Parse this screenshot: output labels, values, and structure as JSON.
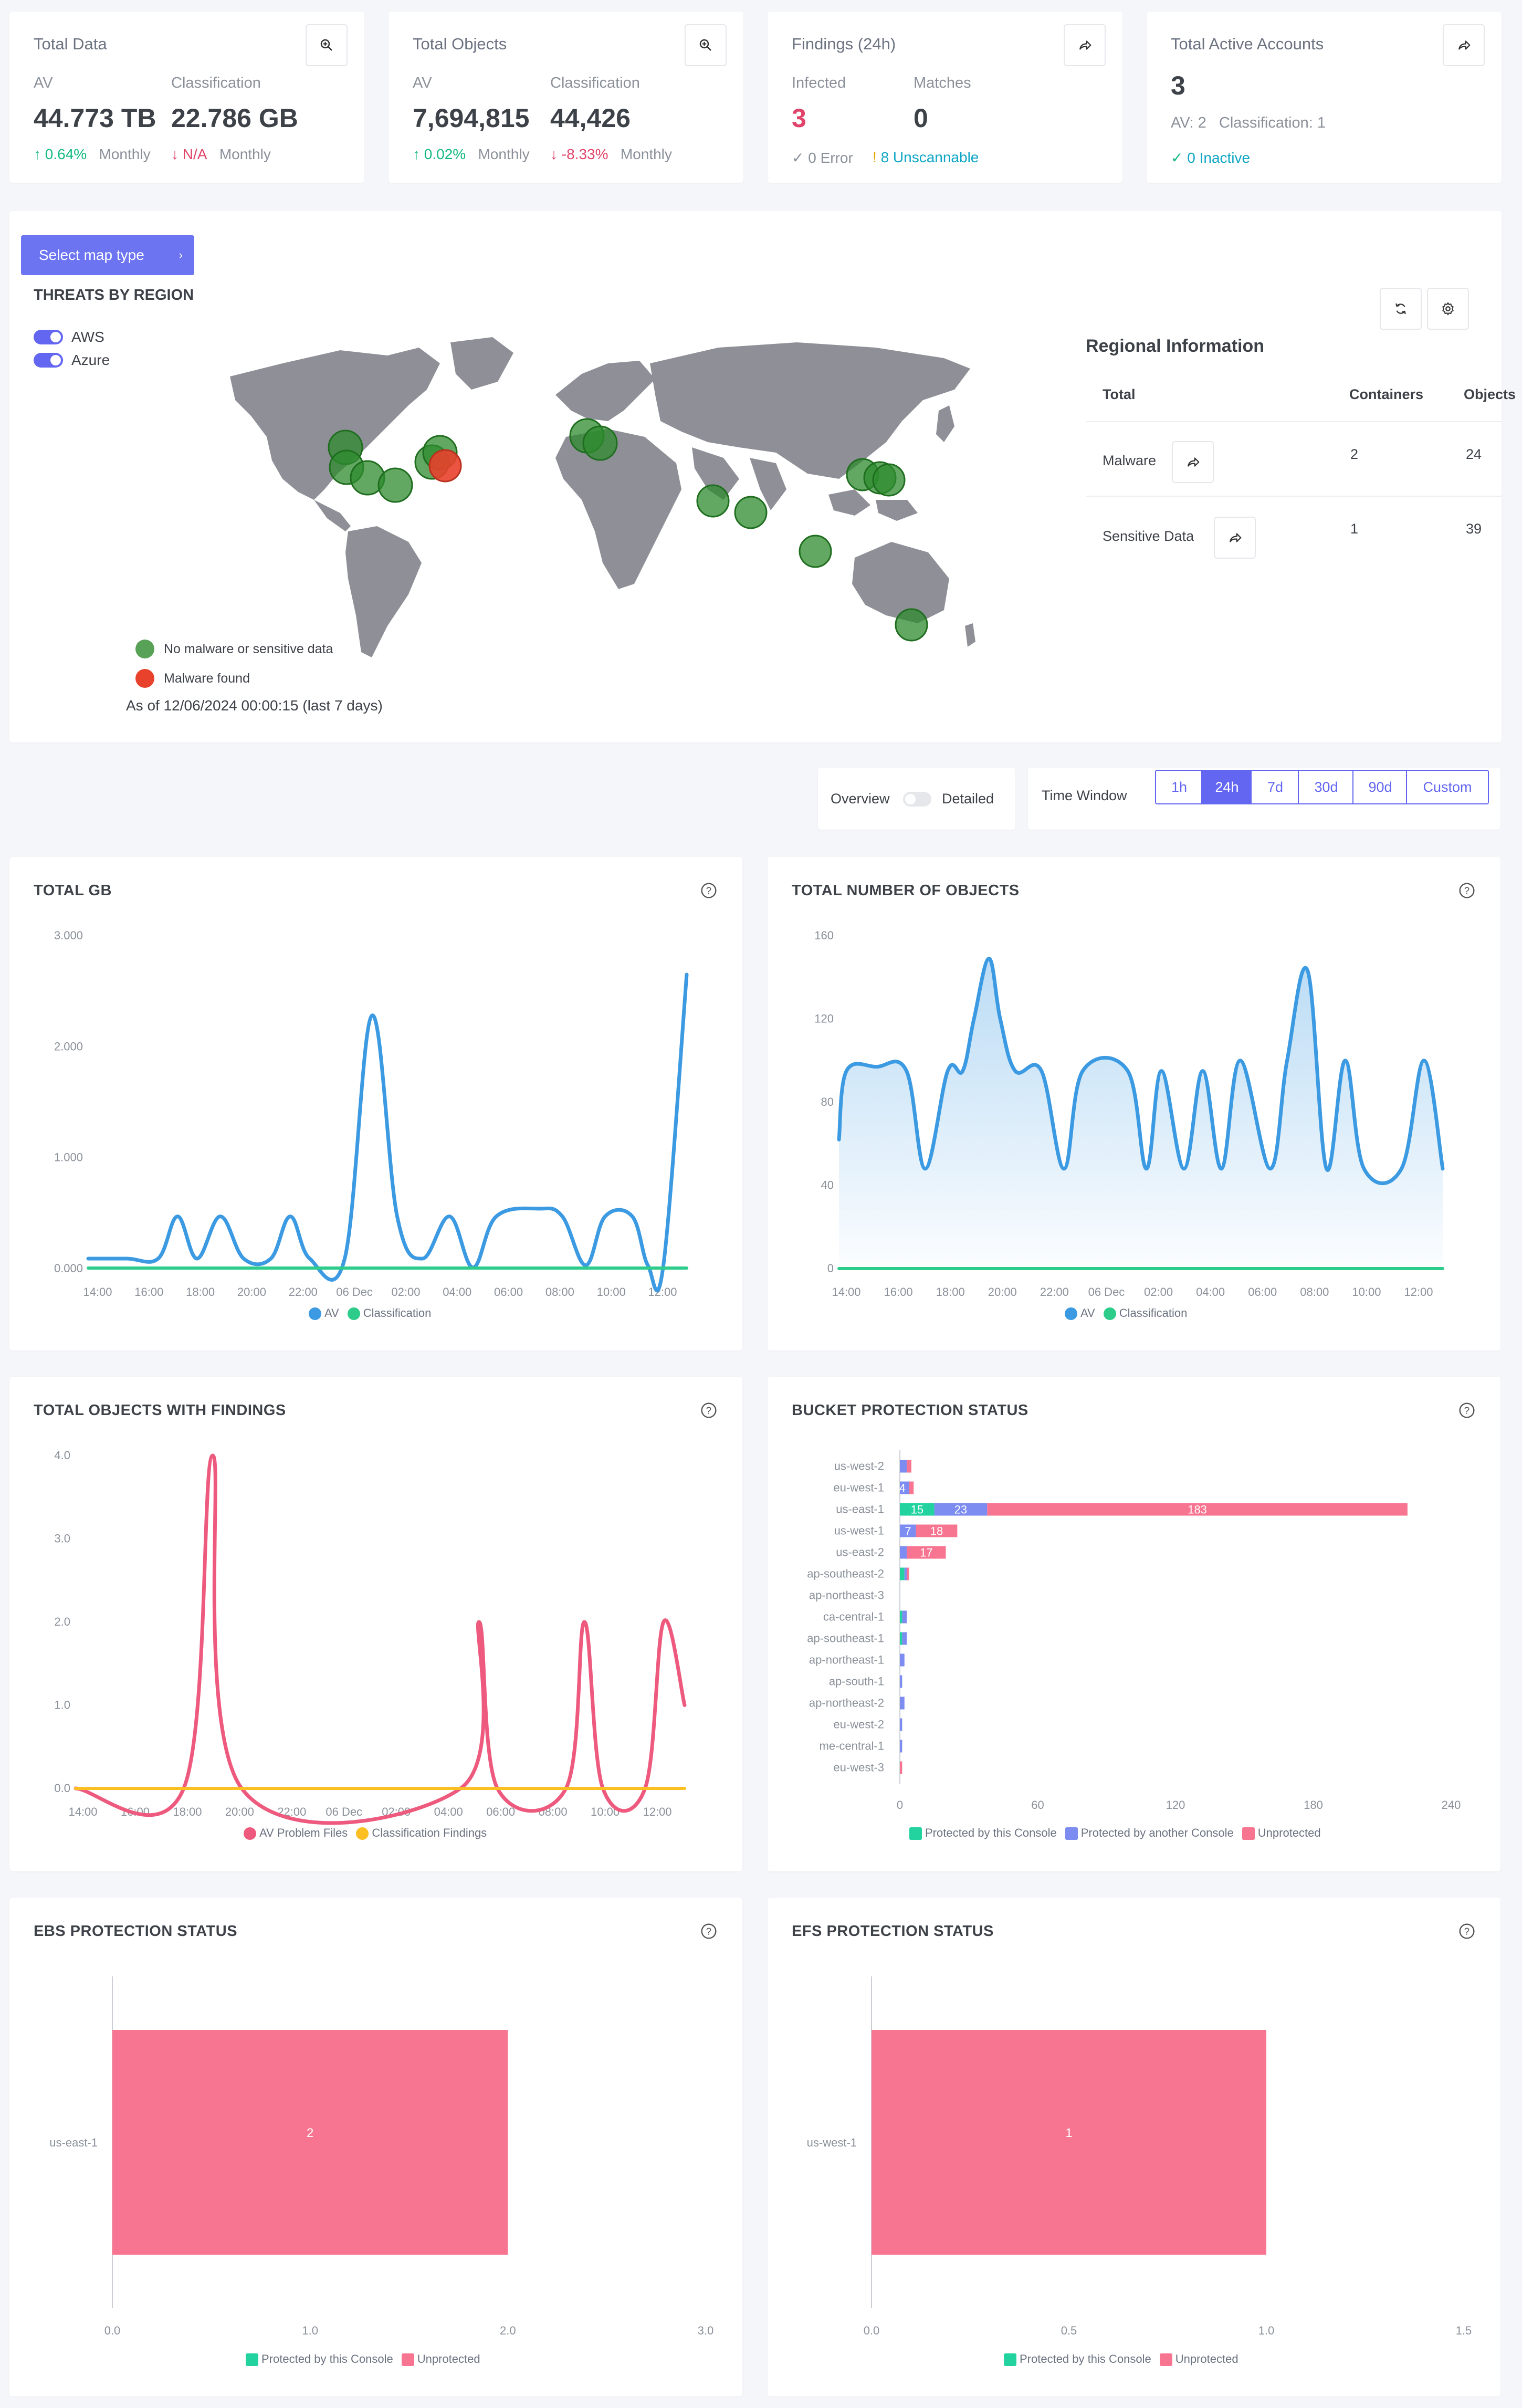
{
  "stats": [
    {
      "title": "Total Data",
      "sub1": "AV",
      "sub2": "Classification",
      "val1": "44.773 TB",
      "val2": "22.786 GB",
      "t1": "0.64%",
      "t1p": "Monthly",
      "t2": "N/A",
      "t2p": "Monthly"
    },
    {
      "title": "Total Objects",
      "sub1": "AV",
      "sub2": "Classification",
      "val1": "7,694,815",
      "val2": "44,426",
      "t1": "0.02%",
      "t1p": "Monthly",
      "t2": "-8.33%",
      "t2p": "Monthly"
    },
    {
      "title": "Findings (24h)",
      "sub1": "Infected",
      "sub2": "Matches",
      "val1": "3",
      "val2": "0",
      "t1": "0 Error",
      "t2": "8 Unscannable"
    },
    {
      "title": "Total Active Accounts",
      "val1": "3",
      "sub1": "AV: 2   Classification: 1",
      "t1": "0 Inactive"
    }
  ],
  "map": {
    "select_button": "Select map type",
    "title": "THREATS BY REGION",
    "toggle_aws": "AWS",
    "toggle_azure": "Azure",
    "legend_ok": "No malware or sensitive data",
    "legend_bad": "Malware found",
    "as_of": "As of 12/06/2024 00:00:15 (last 7 days)"
  },
  "regional": {
    "title": "Regional Information",
    "col_total": "Total",
    "col_containers": "Containers",
    "col_objects": "Objects",
    "rows": [
      {
        "label": "Malware",
        "containers": "2",
        "objects": "24"
      },
      {
        "label": "Sensitive Data",
        "containers": "1",
        "objects": "39"
      }
    ]
  },
  "view": {
    "overview": "Overview",
    "detailed": "Detailed"
  },
  "time_window": {
    "label": "Time Window",
    "options": [
      "1h",
      "24h",
      "7d",
      "30d",
      "90d",
      "Custom"
    ],
    "selected": "24h"
  },
  "colors": {
    "av": "#3b9ae1",
    "classification": "#2ecc8a",
    "findings": "#ee5a7e",
    "classfind": "#fbbf24",
    "protected": "#22d3a0",
    "another": "#7c8cf0",
    "unprotected": "#f87591",
    "ok": "#2e8b2e",
    "bad": "#e8412c"
  },
  "chart_data": [
    {
      "type": "line",
      "title": "TOTAL GB",
      "x": [
        "14:00",
        "16:00",
        "18:00",
        "20:00",
        "22:00",
        "06 Dec",
        "02:00",
        "04:00",
        "06:00",
        "08:00",
        "10:00",
        "12:00"
      ],
      "yticks": [
        "3.000",
        "2.000",
        "1.000",
        "0.000"
      ],
      "ylim": [
        0,
        3000
      ],
      "series": [
        {
          "name": "AV",
          "points": [
            [
              0,
              90
            ],
            [
              1,
              90
            ],
            [
              1.8,
              90
            ],
            [
              2.3,
              470
            ],
            [
              2.8,
              90
            ],
            [
              3.4,
              470
            ],
            [
              4,
              90
            ],
            [
              4.7,
              90
            ],
            [
              5.2,
              470
            ],
            [
              5.7,
              90
            ],
            [
              6.6,
              90
            ],
            [
              7.3,
              2280
            ],
            [
              7.95,
              470
            ],
            [
              8.6,
              90
            ],
            [
              9.3,
              470
            ],
            [
              9.9,
              10
            ],
            [
              10.5,
              470
            ],
            [
              11.6,
              540
            ],
            [
              12.2,
              470
            ],
            [
              12.8,
              30
            ],
            [
              13.3,
              470
            ],
            [
              14,
              470
            ],
            [
              14.4,
              30
            ],
            [
              14.8,
              30
            ],
            [
              15.4,
              2650
            ]
          ]
        },
        {
          "name": "Classification",
          "points": [
            [
              0,
              5
            ],
            [
              15.4,
              5
            ]
          ]
        }
      ]
    },
    {
      "type": "line",
      "title": "TOTAL NUMBER OF OBJECTS",
      "x": [
        "14:00",
        "16:00",
        "18:00",
        "20:00",
        "22:00",
        "06 Dec",
        "02:00",
        "04:00",
        "06:00",
        "08:00",
        "10:00",
        "12:00"
      ],
      "yticks": [
        "160",
        "120",
        "80",
        "40",
        "0"
      ],
      "ylim": [
        0,
        160
      ],
      "series": [
        {
          "name": "AV",
          "points": [
            [
              0,
              62
            ],
            [
              0.2,
              95
            ],
            [
              1,
              97
            ],
            [
              1.8,
              95
            ],
            [
              2.3,
              48
            ],
            [
              2.9,
              95
            ],
            [
              3.3,
              95
            ],
            [
              3.6,
              120
            ],
            [
              4.0,
              149
            ],
            [
              4.3,
              120
            ],
            [
              4.7,
              95
            ],
            [
              5.4,
              95
            ],
            [
              6.0,
              48
            ],
            [
              6.5,
              95
            ],
            [
              7.7,
              95
            ],
            [
              8.2,
              48
            ],
            [
              8.6,
              95
            ],
            [
              9.2,
              48
            ],
            [
              9.7,
              95
            ],
            [
              10.2,
              48
            ],
            [
              10.7,
              100
            ],
            [
              11.5,
              48
            ],
            [
              11.95,
              100
            ],
            [
              12.5,
              143
            ],
            [
              13,
              48
            ],
            [
              13.5,
              100
            ],
            [
              14,
              48
            ],
            [
              15.0,
              48
            ],
            [
              15.6,
              100
            ],
            [
              16.1,
              48
            ]
          ]
        },
        {
          "name": "Classification",
          "points": [
            [
              0,
              0
            ],
            [
              16.1,
              0
            ]
          ]
        }
      ]
    },
    {
      "type": "line",
      "title": "TOTAL OBJECTS WITH FINDINGS",
      "x": [
        "14:00",
        "16:00",
        "18:00",
        "20:00",
        "22:00",
        "06 Dec",
        "02:00",
        "04:00",
        "06:00",
        "08:00",
        "10:00",
        "12:00"
      ],
      "yticks": [
        "4.0",
        "3.0",
        "2.0",
        "1.0",
        "0.0"
      ],
      "ylim": [
        0,
        4
      ],
      "series": [
        {
          "name": "AV Problem Files",
          "points": [
            [
              0,
              0
            ],
            [
              2.05,
              0
            ],
            [
              2.6,
              4
            ],
            [
              3.15,
              0
            ],
            [
              7.3,
              0
            ],
            [
              7.65,
              2
            ],
            [
              8,
              0
            ],
            [
              9.3,
              0
            ],
            [
              9.65,
              2
            ],
            [
              10,
              0
            ],
            [
              10.8,
              0
            ],
            [
              11.15,
              2
            ],
            [
              11.55,
              1
            ]
          ]
        },
        {
          "name": "Classification Findings",
          "points": [
            [
              0,
              0
            ],
            [
              11.55,
              0
            ]
          ]
        }
      ]
    },
    {
      "type": "bar",
      "title": "BUCKET PROTECTION STATUS",
      "categories": [
        "us-west-2",
        "eu-west-1",
        "us-east-1",
        "us-west-1",
        "us-east-2",
        "ap-southeast-2",
        "ap-northeast-3",
        "ca-central-1",
        "ap-southeast-1",
        "ap-northeast-1",
        "ap-south-1",
        "ap-northeast-2",
        "eu-west-2",
        "me-central-1",
        "eu-west-3"
      ],
      "xticks": [
        "0",
        "60",
        "120",
        "180",
        "240"
      ],
      "xlim": [
        0,
        240
      ],
      "series": [
        {
          "name": "Protected by this Console",
          "values": [
            0,
            0,
            15,
            0,
            0,
            2,
            0,
            1,
            1,
            0,
            0,
            0,
            0,
            0,
            0
          ]
        },
        {
          "name": "Protected by another Console",
          "values": [
            3,
            4,
            23,
            7,
            3,
            1,
            0,
            2,
            2,
            2,
            1,
            2,
            1,
            1,
            0
          ]
        },
        {
          "name": "Unprotected",
          "values": [
            2,
            2,
            183,
            18,
            17,
            1,
            0,
            0,
            0,
            0,
            0,
            0,
            0,
            0,
            1
          ]
        }
      ],
      "labels": {
        "us-east-1": [
          "15",
          "23",
          "183"
        ],
        "us-west-1": [
          "7",
          "18"
        ],
        "us-east-2": [
          "17"
        ],
        "eu-west-1": [
          "4"
        ]
      }
    },
    {
      "type": "bar",
      "title": "EBS PROTECTION STATUS",
      "categories": [
        "us-east-1"
      ],
      "xticks": [
        "0.0",
        "1.0",
        "2.0",
        "3.0"
      ],
      "xlim": [
        0,
        3
      ],
      "series": [
        {
          "name": "Protected by this Console",
          "values": [
            0
          ]
        },
        {
          "name": "Unprotected",
          "values": [
            2
          ]
        }
      ],
      "bar_label": "2"
    },
    {
      "type": "bar",
      "title": "EFS PROTECTION STATUS",
      "categories": [
        "us-west-1"
      ],
      "xticks": [
        "0.0",
        "0.5",
        "1.0",
        "1.5"
      ],
      "xlim": [
        0,
        1.5
      ],
      "series": [
        {
          "name": "Protected by this Console",
          "values": [
            0
          ]
        },
        {
          "name": "Unprotected",
          "values": [
            1
          ]
        }
      ],
      "bar_label": "1"
    }
  ]
}
